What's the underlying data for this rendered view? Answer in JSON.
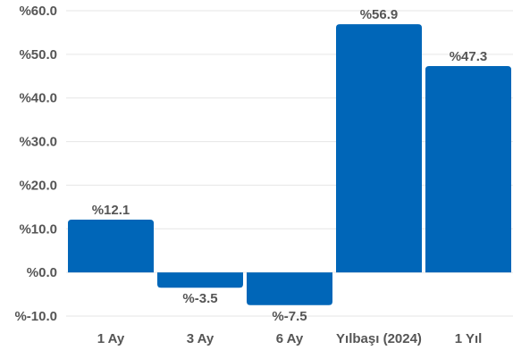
{
  "chart_data": {
    "type": "bar",
    "categories": [
      "1 Ay",
      "3 Ay",
      "6 Ay",
      "Yılbaşı (2024)",
      "1 Yıl"
    ],
    "values": [
      12.1,
      -3.5,
      -7.5,
      56.9,
      47.3
    ],
    "data_labels": [
      "%12.1",
      "%-3.5",
      "%-7.5",
      "%56.9",
      "%47.3"
    ],
    "y_ticks": [
      -10,
      0,
      10,
      20,
      30,
      40,
      50,
      60
    ],
    "y_tick_labels": [
      "%-10.0",
      "%0.0",
      "%10.0",
      "%20.0",
      "%30.0",
      "%40.0",
      "%50.0",
      "%60.0"
    ],
    "ylim": [
      -10,
      60
    ],
    "grid": true,
    "legend": "none",
    "title": "",
    "xlabel": "",
    "ylabel": "",
    "colors": {
      "bar": "#0066b8",
      "text": "#555555",
      "grid": "#e6e6e6"
    }
  }
}
